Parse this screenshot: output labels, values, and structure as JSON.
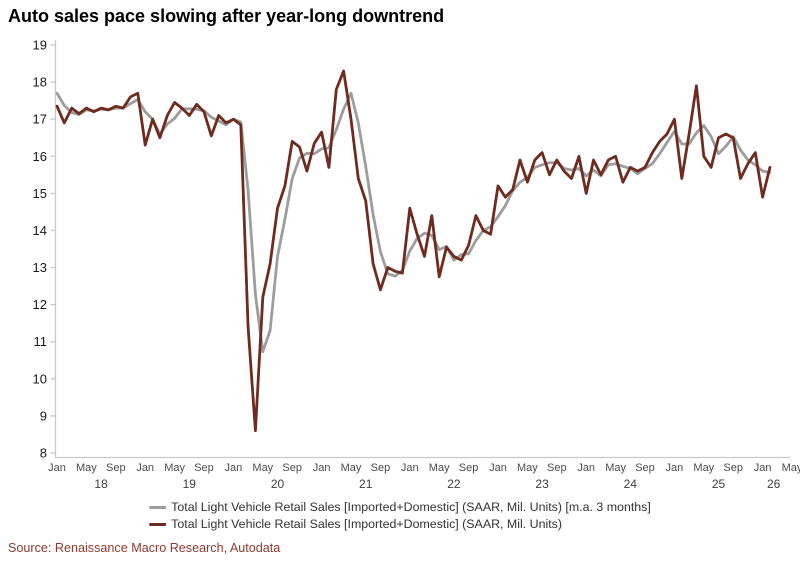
{
  "title": "Auto sales pace slowing after year-long downtrend",
  "source": "Source: Renaissance Macro Research, Autodata",
  "legend": [
    {
      "label": "Total Light Vehicle Retail Sales [Imported+Domestic] (SAAR, Mil. Units) [m.a. 3 months]",
      "color": "#9d9d9d"
    },
    {
      "label": "Total Light Vehicle Retail Sales [Imported+Domestic] (SAAR, Mil. Units)",
      "color": "#6f2b1d"
    }
  ],
  "colors": {
    "axis_line": "#c8c8c8",
    "y_tick_label": "#1a1a1a",
    "x_tick_label": "#4d4d4d",
    "year_label": "#404040",
    "ma_line": "#9d9d9d",
    "raw_line": "#6f2b1d"
  },
  "chart_data": {
    "type": "line",
    "title": "Auto sales pace slowing after year-long downtrend",
    "xlabel": "",
    "ylabel": "",
    "x_start_month": "Jan 2018",
    "x_end_month": "Feb 2026",
    "ylim": [
      8,
      19
    ],
    "y_ticks": [
      8,
      9,
      10,
      11,
      12,
      13,
      14,
      15,
      16,
      17,
      18,
      19
    ],
    "x_month_label_cycle": [
      "Jan",
      "May",
      "Sep"
    ],
    "x_month_label_step": 4,
    "year_labels": [
      "18",
      "19",
      "20",
      "21",
      "22",
      "23",
      "24",
      "25",
      "26"
    ],
    "grid": false,
    "legend_position": "bottom",
    "series": [
      {
        "name": "Total Light Vehicle Retail Sales [Imported+Domestic] (SAAR, Mil. Units) [m.a. 3 months]",
        "color": "#9d9d9d",
        "note": "trailing 3-month moving average of raw series",
        "values": [
          17.7,
          17.37,
          17.18,
          17.12,
          17.25,
          17.22,
          17.27,
          17.25,
          17.3,
          17.3,
          17.42,
          17.53,
          17.2,
          17.0,
          16.6,
          16.87,
          17.02,
          17.28,
          17.28,
          17.27,
          17.23,
          17.05,
          16.95,
          16.85,
          17.0,
          16.92,
          15.08,
          12.28,
          10.73,
          11.3,
          13.3,
          14.3,
          15.4,
          15.95,
          16.08,
          16.07,
          16.2,
          16.23,
          16.72,
          17.27,
          17.7,
          16.9,
          15.73,
          14.43,
          13.43,
          12.83,
          12.77,
          12.92,
          13.45,
          13.78,
          13.93,
          13.87,
          13.48,
          13.57,
          13.2,
          13.35,
          13.37,
          13.73,
          14.0,
          14.1,
          14.37,
          14.67,
          15.07,
          15.3,
          15.43,
          15.7,
          15.77,
          15.83,
          15.83,
          15.67,
          15.63,
          15.67,
          15.47,
          15.63,
          15.47,
          15.77,
          15.8,
          15.73,
          15.67,
          15.53,
          15.67,
          15.8,
          16.07,
          16.37,
          16.67,
          16.33,
          16.33,
          16.63,
          16.83,
          16.53,
          16.07,
          16.27,
          16.53,
          16.17,
          15.9,
          15.77,
          15.6,
          15.57
        ]
      },
      {
        "name": "Total Light Vehicle Retail Sales [Imported+Domestic] (SAAR, Mil. Units)",
        "color": "#6f2b1d",
        "values": [
          17.35,
          16.9,
          17.3,
          17.15,
          17.3,
          17.2,
          17.3,
          17.25,
          17.35,
          17.3,
          17.6,
          17.7,
          16.3,
          17.0,
          16.5,
          17.1,
          17.45,
          17.3,
          17.1,
          17.4,
          17.2,
          16.55,
          17.1,
          16.9,
          17.0,
          16.85,
          11.4,
          8.6,
          12.2,
          13.1,
          14.6,
          15.2,
          16.4,
          16.25,
          15.6,
          16.35,
          16.65,
          15.7,
          17.8,
          18.3,
          17.0,
          15.4,
          14.8,
          13.1,
          12.4,
          13.0,
          12.9,
          12.85,
          14.6,
          13.9,
          13.3,
          14.4,
          12.75,
          13.55,
          13.3,
          13.2,
          13.6,
          14.4,
          14.0,
          13.9,
          15.2,
          14.9,
          15.1,
          15.9,
          15.3,
          15.9,
          16.1,
          15.5,
          15.9,
          15.6,
          15.4,
          16.0,
          15.0,
          15.9,
          15.5,
          15.9,
          16.0,
          15.3,
          15.7,
          15.6,
          15.7,
          16.1,
          16.4,
          16.6,
          17.0,
          15.4,
          16.6,
          17.9,
          16.0,
          15.7,
          16.5,
          16.6,
          16.5,
          15.4,
          15.8,
          16.1,
          14.9,
          15.7
        ]
      }
    ]
  }
}
